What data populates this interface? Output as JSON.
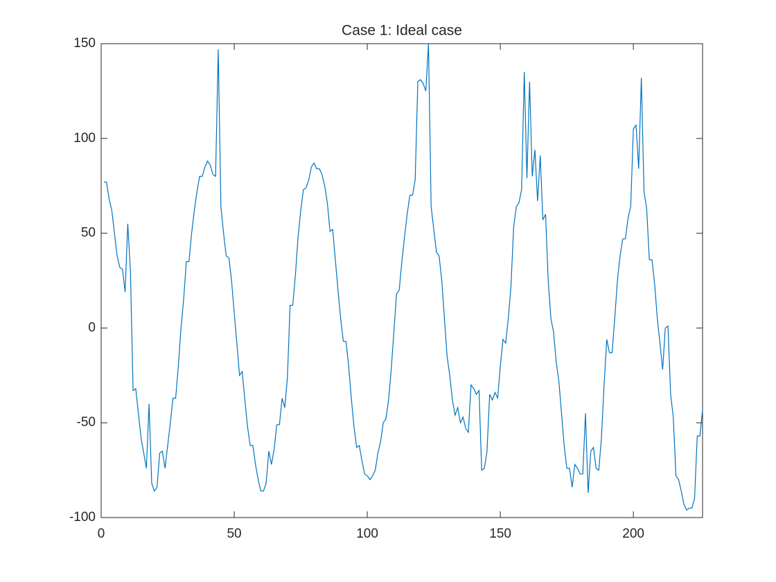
{
  "chart_data": {
    "type": "line",
    "title": "Case 1: Ideal case",
    "color": "#0072bd",
    "x": [
      1,
      2,
      3,
      4,
      5,
      6,
      7,
      8,
      9,
      10,
      11,
      12,
      13,
      14,
      15,
      16,
      17,
      18,
      19,
      20,
      21,
      22,
      23,
      24,
      25,
      26,
      27,
      28,
      29,
      30,
      31,
      32,
      33,
      34,
      35,
      36,
      37,
      38,
      39,
      40,
      41,
      42,
      43,
      44,
      45,
      46,
      47,
      48,
      49,
      50,
      51,
      52,
      53,
      54,
      55,
      56,
      57,
      58,
      59,
      60,
      61,
      62,
      63,
      64,
      65,
      66,
      67,
      68,
      69,
      70,
      71,
      72,
      73,
      74,
      75,
      76,
      77,
      78,
      79,
      80,
      81,
      82,
      83,
      84,
      85,
      86,
      87,
      88,
      89,
      90,
      91,
      92,
      93,
      94,
      95,
      96,
      97,
      98,
      99,
      100,
      101,
      102,
      103,
      104,
      105,
      106,
      107,
      108,
      109,
      110,
      111,
      112,
      113,
      114,
      115,
      116,
      117,
      118,
      119,
      120,
      121,
      122,
      123,
      124,
      125,
      126,
      127,
      128,
      129,
      130,
      131,
      132,
      133,
      134,
      135,
      136,
      137,
      138,
      139,
      140,
      141,
      142,
      143,
      144,
      145,
      146,
      147,
      148,
      149,
      150,
      151,
      152,
      153,
      154,
      155,
      156,
      157,
      158,
      159,
      160,
      161,
      162,
      163,
      164,
      165,
      166,
      167,
      168,
      169,
      170,
      171,
      172,
      173,
      174,
      175,
      176,
      177,
      178,
      179,
      180,
      181,
      182,
      183,
      184,
      185,
      186,
      187,
      188,
      189,
      190,
      191,
      192,
      193,
      194,
      195,
      196,
      197,
      198,
      199,
      200,
      201,
      202,
      203,
      204,
      205,
      206,
      207,
      208,
      209,
      210,
      211,
      212,
      213,
      214,
      215,
      216,
      217,
      218,
      219,
      220,
      221,
      222,
      223,
      224,
      225,
      226
    ],
    "values": [
      77,
      77,
      68,
      62,
      50,
      38,
      32,
      31,
      19,
      55,
      30,
      -33,
      -32,
      -45,
      -58,
      -66,
      -74,
      -40,
      -82,
      -86,
      -84,
      -66,
      -65,
      -74,
      -62,
      -50,
      -37,
      -37,
      -20,
      0,
      15,
      35,
      35,
      50,
      62,
      72,
      80,
      80,
      85,
      88,
      86,
      81,
      80,
      147,
      64,
      50,
      38,
      37,
      25,
      8,
      -8,
      -25,
      -23,
      -38,
      -52,
      -62,
      -62,
      -72,
      -80,
      -86,
      -86,
      -82,
      -65,
      -72,
      -64,
      -51,
      -51,
      -37,
      -42,
      -26,
      12,
      12,
      28,
      48,
      62,
      73,
      74,
      78,
      85,
      87,
      84,
      84,
      81,
      75,
      66,
      51,
      52,
      36,
      20,
      5,
      -7,
      -7,
      -20,
      -37,
      -52,
      -63,
      -62,
      -70,
      -77,
      -78,
      -80,
      -78,
      -75,
      -66,
      -60,
      -50,
      -48,
      -38,
      -22,
      -2,
      18,
      20,
      35,
      48,
      60,
      70,
      70,
      78,
      130,
      131,
      129,
      125,
      150,
      64,
      52,
      40,
      38,
      25,
      5,
      -15,
      -25,
      -38,
      -46,
      -42,
      -50,
      -47,
      -53,
      -55,
      -30,
      -32,
      -35,
      -33,
      -75,
      -74,
      -65,
      -35,
      -38,
      -34,
      -37,
      -20,
      -6,
      -8,
      5,
      22,
      53,
      64,
      66,
      73,
      135,
      79,
      130,
      80,
      94,
      67,
      91,
      57,
      60,
      25,
      5,
      -2,
      -18,
      -28,
      -45,
      -62,
      -74,
      -74,
      -84,
      -72,
      -74,
      -77,
      -77,
      -45,
      -87,
      -65,
      -63,
      -74,
      -75,
      -58,
      -30,
      -6,
      -13,
      -13,
      5,
      25,
      38,
      47,
      47,
      58,
      64,
      105,
      107,
      84,
      132,
      72,
      63,
      36,
      36,
      23,
      5,
      -8,
      -22,
      0,
      1,
      -35,
      -47,
      -78,
      -80,
      -86,
      -93,
      -96,
      -95,
      -95,
      -90,
      -57,
      -57,
      -43
    ],
    "xlim": [
      0,
      226
    ],
    "ylim": [
      -100,
      150
    ],
    "xticks": [
      0,
      50,
      100,
      150,
      200
    ],
    "yticks": [
      -100,
      -50,
      0,
      50,
      100,
      150
    ]
  }
}
